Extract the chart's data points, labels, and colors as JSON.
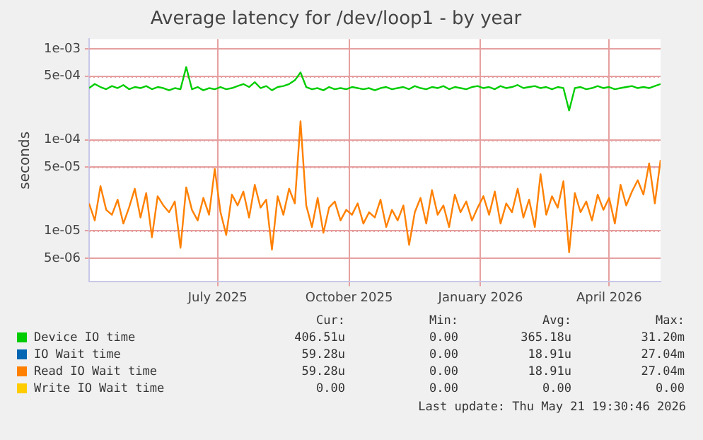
{
  "chart_data": {
    "type": "line",
    "title": "Average latency for /dev/loop1 - by year",
    "ylabel": "seconds",
    "log": "y",
    "grid": true,
    "legend": "bottom",
    "marker": "none",
    "line_style": "solid",
    "xlim": [
      "2025-04-16",
      "2026-05-21"
    ],
    "xticks": [
      {
        "value": "2025-07-15",
        "label": "July 2025"
      },
      {
        "value": "2025-10-15",
        "label": "October 2025"
      },
      {
        "value": "2026-01-15",
        "label": "January 2026"
      },
      {
        "value": "2026-04-15",
        "label": "April 2026"
      }
    ],
    "ylim": [
      2.75e-06,
      0.00128
    ],
    "yticks": [
      {
        "value": 5e-06,
        "label": "5e-06"
      },
      {
        "value": 1e-05,
        "label": "1e-05"
      },
      {
        "value": 5e-05,
        "label": "5e-05"
      },
      {
        "value": 0.0001,
        "label": "1e-04"
      },
      {
        "value": 0.0005,
        "label": "5e-04"
      },
      {
        "value": 0.001,
        "label": "1e-03"
      }
    ],
    "x": [
      "2025-04-16",
      "2025-04-20",
      "2025-04-24",
      "2025-04-28",
      "2025-05-02",
      "2025-05-06",
      "2025-05-10",
      "2025-05-14",
      "2025-05-18",
      "2025-05-22",
      "2025-05-26",
      "2025-05-30",
      "2025-06-03",
      "2025-06-07",
      "2025-06-11",
      "2025-06-15",
      "2025-06-19",
      "2025-06-23",
      "2025-06-27",
      "2025-07-01",
      "2025-07-05",
      "2025-07-09",
      "2025-07-13",
      "2025-07-17",
      "2025-07-21",
      "2025-07-25",
      "2025-07-29",
      "2025-08-02",
      "2025-08-06",
      "2025-08-10",
      "2025-08-14",
      "2025-08-18",
      "2025-08-22",
      "2025-08-26",
      "2025-08-30",
      "2025-09-03",
      "2025-09-07",
      "2025-09-11",
      "2025-09-15",
      "2025-09-19",
      "2025-09-23",
      "2025-09-27",
      "2025-10-01",
      "2025-10-05",
      "2025-10-09",
      "2025-10-13",
      "2025-10-17",
      "2025-10-21",
      "2025-10-25",
      "2025-10-29",
      "2025-11-02",
      "2025-11-06",
      "2025-11-10",
      "2025-11-14",
      "2025-11-18",
      "2025-11-22",
      "2025-11-26",
      "2025-11-30",
      "2025-12-04",
      "2025-12-08",
      "2025-12-12",
      "2025-12-16",
      "2025-12-20",
      "2025-12-24",
      "2025-12-28",
      "2026-01-01",
      "2026-01-05",
      "2026-01-09",
      "2026-01-13",
      "2026-01-17",
      "2026-01-21",
      "2026-01-25",
      "2026-01-29",
      "2026-02-02",
      "2026-02-06",
      "2026-02-10",
      "2026-02-14",
      "2026-02-18",
      "2026-02-22",
      "2026-02-26",
      "2026-03-02",
      "2026-03-06",
      "2026-03-10",
      "2026-03-14",
      "2026-03-18",
      "2026-03-22",
      "2026-03-26",
      "2026-03-30",
      "2026-04-03",
      "2026-04-07",
      "2026-04-11",
      "2026-04-15",
      "2026-04-19",
      "2026-04-23",
      "2026-04-27",
      "2026-05-01",
      "2026-05-05",
      "2026-05-09",
      "2026-05-13",
      "2026-05-17",
      "2026-05-21"
    ],
    "series": [
      {
        "name": "Device IO time",
        "color": "#00cc00",
        "values": [
          0.00037,
          0.00041,
          0.00038,
          0.00036,
          0.00039,
          0.00037,
          0.0004,
          0.00036,
          0.00038,
          0.00037,
          0.00039,
          0.00036,
          0.00038,
          0.00037,
          0.00035,
          0.00037,
          0.00036,
          0.00063,
          0.00036,
          0.00038,
          0.00035,
          0.00037,
          0.00036,
          0.00038,
          0.00036,
          0.00037,
          0.00039,
          0.00041,
          0.00038,
          0.00043,
          0.00037,
          0.00039,
          0.00035,
          0.00038,
          0.00039,
          0.00041,
          0.00045,
          0.00055,
          0.00038,
          0.00036,
          0.00037,
          0.00035,
          0.00038,
          0.00036,
          0.00037,
          0.00036,
          0.00038,
          0.00037,
          0.00036,
          0.00037,
          0.00035,
          0.00037,
          0.00038,
          0.00036,
          0.00037,
          0.00038,
          0.00036,
          0.00039,
          0.00037,
          0.00036,
          0.00038,
          0.00037,
          0.00039,
          0.00036,
          0.00038,
          0.00037,
          0.00036,
          0.00038,
          0.00039,
          0.00037,
          0.00038,
          0.00036,
          0.00039,
          0.00037,
          0.00038,
          0.0004,
          0.00037,
          0.00038,
          0.00039,
          0.00037,
          0.00038,
          0.00036,
          0.00038,
          0.00037,
          0.00021,
          0.00037,
          0.00038,
          0.00036,
          0.00037,
          0.00039,
          0.00037,
          0.00038,
          0.00036,
          0.00037,
          0.00038,
          0.00039,
          0.00037,
          0.00038,
          0.00037,
          0.00039,
          0.00041
        ]
      },
      {
        "name": "IO Wait time",
        "color": "#0066b3",
        "values": [
          null,
          null,
          null,
          null,
          null,
          null,
          null,
          null,
          null,
          null,
          null,
          null,
          null,
          null,
          null,
          null,
          null,
          null,
          null,
          null,
          null,
          null,
          null,
          null,
          null,
          null,
          null,
          null,
          null,
          null,
          null,
          null,
          null,
          null,
          null,
          null,
          null,
          null,
          null,
          null,
          null,
          null,
          null,
          null,
          null,
          null,
          null,
          null,
          null,
          null,
          null,
          null,
          null,
          null,
          null,
          null,
          null,
          null,
          null,
          null,
          null,
          null,
          null,
          null,
          null,
          null,
          null,
          null,
          null,
          null,
          null,
          null,
          null,
          null,
          null,
          null,
          null,
          null,
          null,
          null,
          null,
          null,
          null,
          null,
          null,
          null,
          null,
          null,
          null,
          null,
          null,
          null,
          null,
          null,
          null,
          null,
          null,
          null,
          null,
          null,
          null
        ]
      },
      {
        "name": "Read IO Wait time",
        "color": "#ff8000",
        "values": [
          2e-05,
          1.3e-05,
          3.1e-05,
          1.7e-05,
          1.5e-05,
          2.2e-05,
          1.2e-05,
          1.8e-05,
          2.9e-05,
          1.4e-05,
          2.6e-05,
          8.5e-06,
          2.4e-05,
          1.9e-05,
          1.6e-05,
          2.1e-05,
          6.5e-06,
          3e-05,
          1.7e-05,
          1.3e-05,
          2.3e-05,
          1.5e-05,
          4.8e-05,
          1.6e-05,
          9e-06,
          2.5e-05,
          1.9e-05,
          2.7e-05,
          1.4e-05,
          3.2e-05,
          1.8e-05,
          2.2e-05,
          6.2e-06,
          2.4e-05,
          1.5e-05,
          2.9e-05,
          2e-05,
          0.00016,
          1.9e-05,
          1.1e-05,
          2.3e-05,
          9.5e-06,
          1.8e-05,
          2.1e-05,
          1.3e-05,
          1.7e-05,
          1.5e-05,
          2e-05,
          1.2e-05,
          1.6e-05,
          1.4e-05,
          2.2e-05,
          1.1e-05,
          1.7e-05,
          1.3e-05,
          1.9e-05,
          7e-06,
          1.6e-05,
          2.3e-05,
          1.2e-05,
          2.8e-05,
          1.5e-05,
          1.9e-05,
          1.1e-05,
          2.5e-05,
          1.6e-05,
          2.1e-05,
          1.3e-05,
          1.8e-05,
          2.4e-05,
          1.5e-05,
          2.7e-05,
          1.2e-05,
          2e-05,
          1.6e-05,
          2.9e-05,
          1.4e-05,
          2.2e-05,
          1.1e-05,
          4.2e-05,
          1.5e-05,
          2.4e-05,
          1.8e-05,
          3.5e-05,
          5.8e-06,
          2.6e-05,
          1.6e-05,
          2.1e-05,
          1.3e-05,
          2.5e-05,
          1.7e-05,
          2.3e-05,
          1.2e-05,
          3.2e-05,
          1.9e-05,
          2.7e-05,
          3.6e-05,
          2.5e-05,
          5.5e-05,
          2e-05,
          6e-05
        ]
      },
      {
        "name": "Write IO Wait time",
        "color": "#ffcc00",
        "values": [
          null,
          null,
          null,
          null,
          null,
          null,
          null,
          null,
          null,
          null,
          null,
          null,
          null,
          null,
          null,
          null,
          null,
          null,
          null,
          null,
          null,
          null,
          null,
          null,
          null,
          null,
          null,
          null,
          null,
          null,
          null,
          null,
          null,
          null,
          null,
          null,
          null,
          null,
          null,
          null,
          null,
          null,
          null,
          null,
          null,
          null,
          null,
          null,
          null,
          null,
          null,
          null,
          null,
          null,
          null,
          null,
          null,
          null,
          null,
          null,
          null,
          null,
          null,
          null,
          null,
          null,
          null,
          null,
          null,
          null,
          null,
          null,
          null,
          null,
          null,
          null,
          null,
          null,
          null,
          null,
          null,
          null,
          null,
          null,
          null,
          null,
          null,
          null,
          null,
          null,
          null,
          null,
          null,
          null,
          null,
          null,
          null,
          null,
          null,
          null,
          null
        ]
      }
    ],
    "annotations": [
      "Cur:",
      "Min:",
      "Avg:",
      "Max:",
      "406.51u",
      "0.00",
      "365.18u",
      "31.20m",
      "59.28u",
      "0.00",
      "18.91u",
      "27.04m",
      "59.28u",
      "0.00",
      "18.91u",
      "27.04m",
      "0.00",
      "0.00",
      "0.00",
      "0.00",
      "Last update: Thu May 21 19:30:46 2026"
    ]
  }
}
